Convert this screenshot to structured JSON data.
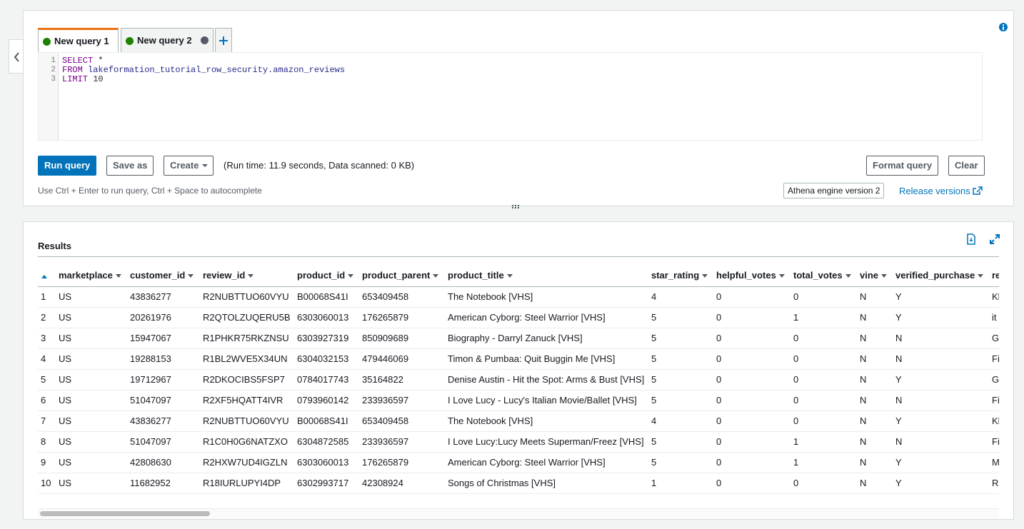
{
  "tabs": [
    {
      "label": "New query 1"
    },
    {
      "label": "New query 2"
    }
  ],
  "editor": {
    "lines": [
      {
        "number": 1,
        "keyword": "SELECT",
        "rest": "*"
      },
      {
        "number": 2,
        "keyword": "FROM",
        "rest": "lakeformation_tutorial_row_security.amazon_reviews"
      },
      {
        "number": 3,
        "keyword": "LIMIT",
        "rest": "10"
      }
    ]
  },
  "buttons": {
    "run": "Run query",
    "save": "Save as",
    "create": "Create",
    "format": "Format query",
    "clear": "Clear"
  },
  "run_info": "(Run time: 11.9 seconds, Data scanned: 0 KB)",
  "hint": "Use Ctrl + Enter to run query, Ctrl + Space to autocomplete",
  "engine": "Athena engine version 2",
  "release_link": "Release versions",
  "results": {
    "title": "Results",
    "columns": [
      "marketplace",
      "customer_id",
      "review_id",
      "product_id",
      "product_parent",
      "product_title",
      "star_rating",
      "helpful_votes",
      "total_votes",
      "vine",
      "verified_purchase",
      "re"
    ],
    "rows": [
      [
        "1",
        "US",
        "43836277",
        "R2NUBTTUO60VYU",
        "B00068S41I",
        "653409458",
        "The Notebook [VHS]",
        "4",
        "0",
        "0",
        "N",
        "Y",
        "Kl"
      ],
      [
        "2",
        "US",
        "20261976",
        "R2QTOLZUQERU5B",
        "6303060013",
        "176265879",
        "American Cyborg: Steel Warrior [VHS]",
        "5",
        "0",
        "1",
        "N",
        "Y",
        "it"
      ],
      [
        "3",
        "US",
        "15947067",
        "R1PHKR75RKZNSU",
        "6303927319",
        "850909689",
        "Biography - Darryl Zanuck [VHS]",
        "5",
        "0",
        "0",
        "N",
        "N",
        "G"
      ],
      [
        "4",
        "US",
        "19288153",
        "R1BL2WVE5X34UN",
        "6304032153",
        "479446069",
        "Timon & Pumbaa: Quit Buggin Me [VHS]",
        "5",
        "0",
        "0",
        "N",
        "N",
        "Fi"
      ],
      [
        "5",
        "US",
        "19712967",
        "R2DKOCIBS5FSP7",
        "0784017743",
        "35164822",
        "Denise Austin - Hit the Spot: Arms & Bust [VHS]",
        "5",
        "0",
        "0",
        "N",
        "Y",
        "G"
      ],
      [
        "6",
        "US",
        "51047097",
        "R2XF5HQATT4IVR",
        "0793960142",
        "233936597",
        "I Love Lucy - Lucy's Italian Movie/Ballet [VHS]",
        "5",
        "0",
        "0",
        "N",
        "N",
        "Fi"
      ],
      [
        "7",
        "US",
        "43836277",
        "R2NUBTTUO60VYU",
        "B00068S41I",
        "653409458",
        "The Notebook [VHS]",
        "4",
        "0",
        "0",
        "N",
        "Y",
        "Kl"
      ],
      [
        "8",
        "US",
        "51047097",
        "R1C0H0G6NATZXO",
        "6304872585",
        "233936597",
        "I Love Lucy:Lucy Meets Superman/Freez [VHS]",
        "5",
        "0",
        "1",
        "N",
        "N",
        "Fi"
      ],
      [
        "9",
        "US",
        "42808630",
        "R2HXW7UD4IGZLN",
        "6303060013",
        "176265879",
        "American Cyborg: Steel Warrior [VHS]",
        "5",
        "0",
        "1",
        "N",
        "Y",
        "M"
      ],
      [
        "10",
        "US",
        "11682952",
        "R18IURLUPYI4DP",
        "6302993717",
        "42308924",
        "Songs of Christmas [VHS]",
        "1",
        "0",
        "0",
        "N",
        "Y",
        "Re"
      ]
    ]
  }
}
